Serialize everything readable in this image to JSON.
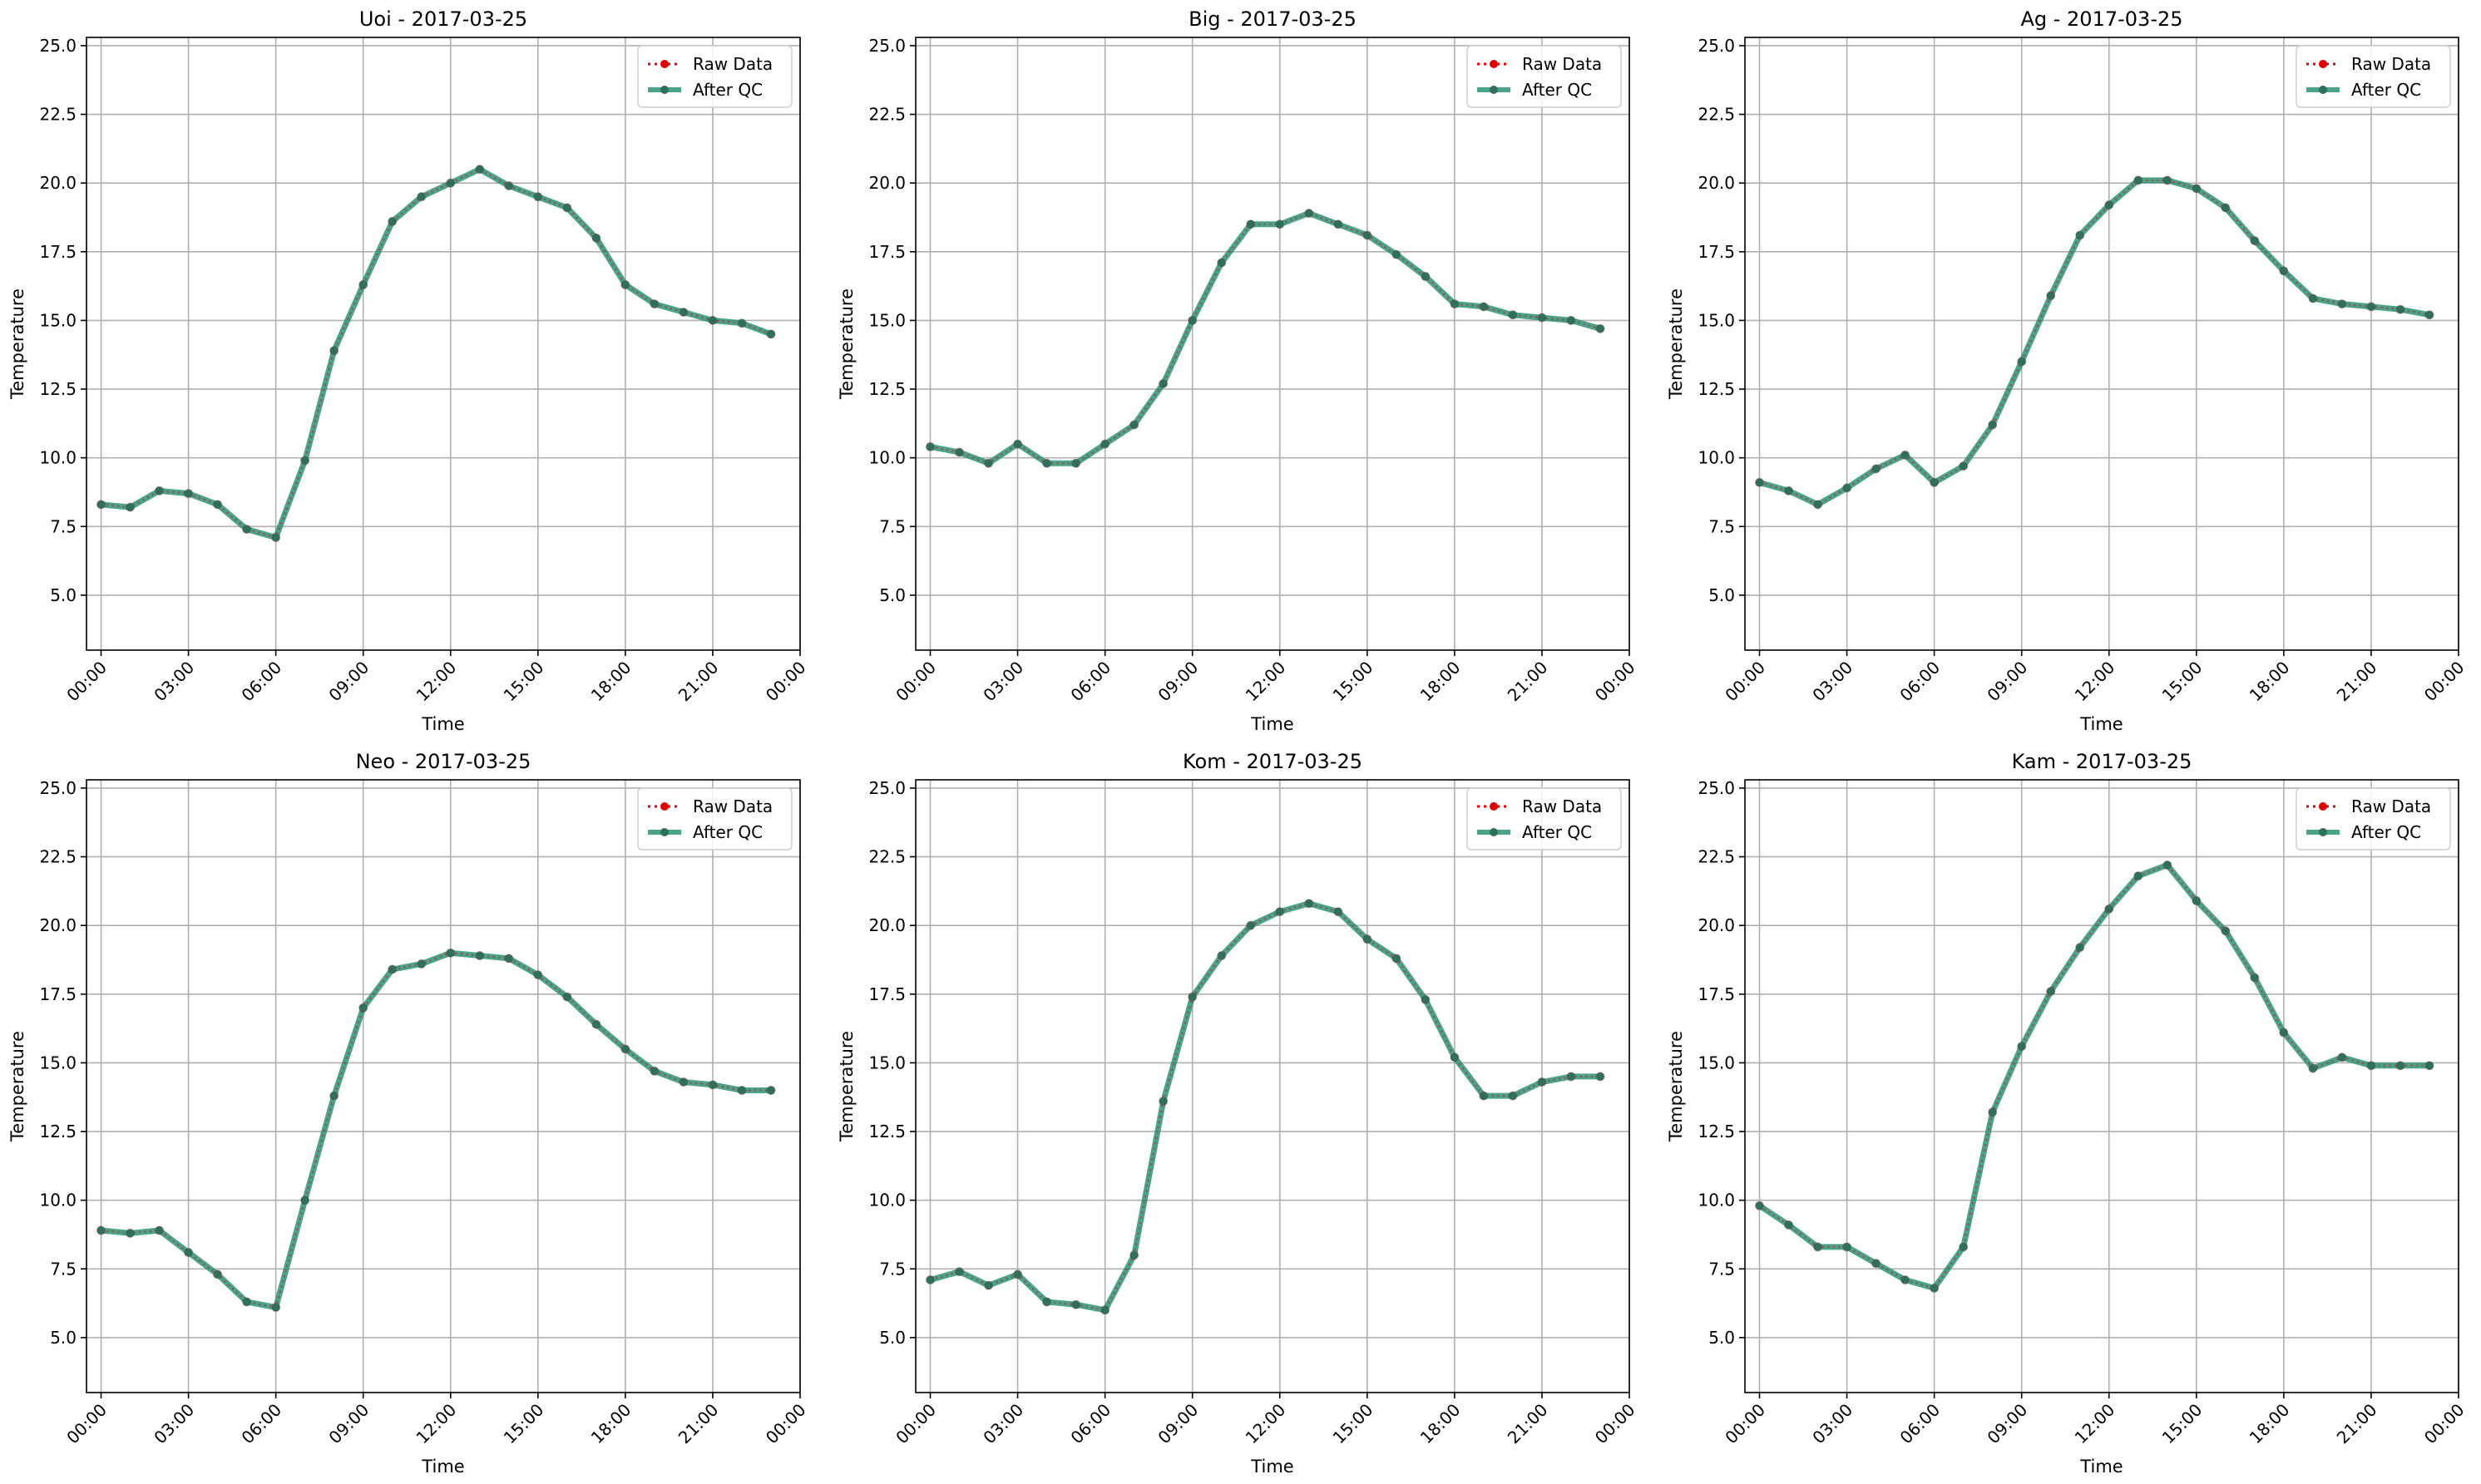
{
  "figure": {
    "background": "#ffffff"
  },
  "style": {
    "raw_color": "#e00000",
    "qc_color": "#2a9476",
    "qc_marker_color": "#2f6f5c",
    "grid_color": "#b0b0b0",
    "axis_color": "#000000"
  },
  "legend": {
    "raw_label": "Raw Data",
    "qc_label": "After QC",
    "location": "upper right"
  },
  "chart_data": [
    {
      "type": "line",
      "title": "Uoi - 2017-03-25",
      "xlabel": "Time",
      "ylabel": "Temperature",
      "x_unit": "hour of day",
      "xlim": [
        -0.5,
        24.0
      ],
      "ylim": [
        3.0,
        25.3
      ],
      "xticks": [
        0,
        3,
        6,
        9,
        12,
        15,
        18,
        21,
        24
      ],
      "xtick_labels": [
        "00:00",
        "03:00",
        "06:00",
        "09:00",
        "12:00",
        "15:00",
        "18:00",
        "21:00",
        "00:00"
      ],
      "yticks": [
        5.0,
        7.5,
        10.0,
        12.5,
        15.0,
        17.5,
        20.0,
        22.5,
        25.0
      ],
      "ytick_labels": [
        "5.0",
        "7.5",
        "10.0",
        "12.5",
        "15.0",
        "17.5",
        "20.0",
        "22.5",
        "25.0"
      ],
      "grid": true,
      "x": [
        0,
        1,
        2,
        3,
        4,
        5,
        6,
        7,
        8,
        9,
        10,
        11,
        12,
        13,
        14,
        15,
        16,
        17,
        18,
        19,
        20,
        21,
        22,
        23
      ],
      "series": [
        {
          "name": "Raw Data",
          "values": [
            8.3,
            8.2,
            8.8,
            8.7,
            8.3,
            7.4,
            7.1,
            9.9,
            13.9,
            16.3,
            18.6,
            19.5,
            20.0,
            20.5,
            19.9,
            19.5,
            19.1,
            18.0,
            16.3,
            15.6,
            15.3,
            15.0,
            14.9,
            14.5
          ]
        },
        {
          "name": "After QC",
          "values": [
            8.3,
            8.2,
            8.8,
            8.7,
            8.3,
            7.4,
            7.1,
            9.9,
            13.9,
            16.3,
            18.6,
            19.5,
            20.0,
            20.5,
            19.9,
            19.5,
            19.1,
            18.0,
            16.3,
            15.6,
            15.3,
            15.0,
            14.9,
            14.5
          ]
        }
      ]
    },
    {
      "type": "line",
      "title": "Big - 2017-03-25",
      "xlabel": "Time",
      "ylabel": "Temperature",
      "x_unit": "hour of day",
      "xlim": [
        -0.5,
        24.0
      ],
      "ylim": [
        3.0,
        25.3
      ],
      "xticks": [
        0,
        3,
        6,
        9,
        12,
        15,
        18,
        21,
        24
      ],
      "xtick_labels": [
        "00:00",
        "03:00",
        "06:00",
        "09:00",
        "12:00",
        "15:00",
        "18:00",
        "21:00",
        "00:00"
      ],
      "yticks": [
        5.0,
        7.5,
        10.0,
        12.5,
        15.0,
        17.5,
        20.0,
        22.5,
        25.0
      ],
      "ytick_labels": [
        "5.0",
        "7.5",
        "10.0",
        "12.5",
        "15.0",
        "17.5",
        "20.0",
        "22.5",
        "25.0"
      ],
      "grid": true,
      "x": [
        0,
        1,
        2,
        3,
        4,
        5,
        6,
        7,
        8,
        9,
        10,
        11,
        12,
        13,
        14,
        15,
        16,
        17,
        18,
        19,
        20,
        21,
        22,
        23
      ],
      "series": [
        {
          "name": "Raw Data",
          "values": [
            10.4,
            10.2,
            9.8,
            10.5,
            9.8,
            9.8,
            10.5,
            11.2,
            12.7,
            15.0,
            17.1,
            18.5,
            18.5,
            18.9,
            18.5,
            18.1,
            17.4,
            16.6,
            15.6,
            15.5,
            15.2,
            15.1,
            15.0,
            14.7
          ]
        },
        {
          "name": "After QC",
          "values": [
            10.4,
            10.2,
            9.8,
            10.5,
            9.8,
            9.8,
            10.5,
            11.2,
            12.7,
            15.0,
            17.1,
            18.5,
            18.5,
            18.9,
            18.5,
            18.1,
            17.4,
            16.6,
            15.6,
            15.5,
            15.2,
            15.1,
            15.0,
            14.7
          ]
        }
      ]
    },
    {
      "type": "line",
      "title": "Ag - 2017-03-25",
      "xlabel": "Time",
      "ylabel": "Temperature",
      "x_unit": "hour of day",
      "xlim": [
        -0.5,
        24.0
      ],
      "ylim": [
        3.0,
        25.3
      ],
      "xticks": [
        0,
        3,
        6,
        9,
        12,
        15,
        18,
        21,
        24
      ],
      "xtick_labels": [
        "00:00",
        "03:00",
        "06:00",
        "09:00",
        "12:00",
        "15:00",
        "18:00",
        "21:00",
        "00:00"
      ],
      "yticks": [
        5.0,
        7.5,
        10.0,
        12.5,
        15.0,
        17.5,
        20.0,
        22.5,
        25.0
      ],
      "ytick_labels": [
        "5.0",
        "7.5",
        "10.0",
        "12.5",
        "15.0",
        "17.5",
        "20.0",
        "22.5",
        "25.0"
      ],
      "grid": true,
      "x": [
        0,
        1,
        2,
        3,
        4,
        5,
        6,
        7,
        8,
        9,
        10,
        11,
        12,
        13,
        14,
        15,
        16,
        17,
        18,
        19,
        20,
        21,
        22,
        23
      ],
      "series": [
        {
          "name": "Raw Data",
          "values": [
            9.1,
            8.8,
            8.3,
            8.9,
            9.6,
            10.1,
            9.1,
            9.7,
            11.2,
            13.5,
            15.9,
            18.1,
            19.2,
            20.1,
            20.1,
            19.8,
            19.1,
            17.9,
            16.8,
            15.8,
            15.6,
            15.5,
            15.4,
            15.2
          ]
        },
        {
          "name": "After QC",
          "values": [
            9.1,
            8.8,
            8.3,
            8.9,
            9.6,
            10.1,
            9.1,
            9.7,
            11.2,
            13.5,
            15.9,
            18.1,
            19.2,
            20.1,
            20.1,
            19.8,
            19.1,
            17.9,
            16.8,
            15.8,
            15.6,
            15.5,
            15.4,
            15.2
          ]
        }
      ]
    },
    {
      "type": "line",
      "title": "Neo - 2017-03-25",
      "xlabel": "Time",
      "ylabel": "Temperature",
      "x_unit": "hour of day",
      "xlim": [
        -0.5,
        24.0
      ],
      "ylim": [
        3.0,
        25.3
      ],
      "xticks": [
        0,
        3,
        6,
        9,
        12,
        15,
        18,
        21,
        24
      ],
      "xtick_labels": [
        "00:00",
        "03:00",
        "06:00",
        "09:00",
        "12:00",
        "15:00",
        "18:00",
        "21:00",
        "00:00"
      ],
      "yticks": [
        5.0,
        7.5,
        10.0,
        12.5,
        15.0,
        17.5,
        20.0,
        22.5,
        25.0
      ],
      "ytick_labels": [
        "5.0",
        "7.5",
        "10.0",
        "12.5",
        "15.0",
        "17.5",
        "20.0",
        "22.5",
        "25.0"
      ],
      "grid": true,
      "x": [
        0,
        1,
        2,
        3,
        4,
        5,
        6,
        7,
        8,
        9,
        10,
        11,
        12,
        13,
        14,
        15,
        16,
        17,
        18,
        19,
        20,
        21,
        22,
        23
      ],
      "series": [
        {
          "name": "Raw Data",
          "values": [
            8.9,
            8.8,
            8.9,
            8.1,
            7.3,
            6.3,
            6.1,
            10.0,
            13.8,
            17.0,
            18.4,
            18.6,
            19.0,
            18.9,
            18.8,
            18.2,
            17.4,
            16.4,
            15.5,
            14.7,
            14.3,
            14.2,
            14.0,
            14.0
          ]
        },
        {
          "name": "After QC",
          "values": [
            8.9,
            8.8,
            8.9,
            8.1,
            7.3,
            6.3,
            6.1,
            10.0,
            13.8,
            17.0,
            18.4,
            18.6,
            19.0,
            18.9,
            18.8,
            18.2,
            17.4,
            16.4,
            15.5,
            14.7,
            14.3,
            14.2,
            14.0,
            14.0
          ]
        }
      ]
    },
    {
      "type": "line",
      "title": "Kom - 2017-03-25",
      "xlabel": "Time",
      "ylabel": "Temperature",
      "x_unit": "hour of day",
      "xlim": [
        -0.5,
        24.0
      ],
      "ylim": [
        3.0,
        25.3
      ],
      "xticks": [
        0,
        3,
        6,
        9,
        12,
        15,
        18,
        21,
        24
      ],
      "xtick_labels": [
        "00:00",
        "03:00",
        "06:00",
        "09:00",
        "12:00",
        "15:00",
        "18:00",
        "21:00",
        "00:00"
      ],
      "yticks": [
        5.0,
        7.5,
        10.0,
        12.5,
        15.0,
        17.5,
        20.0,
        22.5,
        25.0
      ],
      "ytick_labels": [
        "5.0",
        "7.5",
        "10.0",
        "12.5",
        "15.0",
        "17.5",
        "20.0",
        "22.5",
        "25.0"
      ],
      "grid": true,
      "x": [
        0,
        1,
        2,
        3,
        4,
        5,
        6,
        7,
        8,
        9,
        10,
        11,
        12,
        13,
        14,
        15,
        16,
        17,
        18,
        19,
        20,
        21,
        22,
        23
      ],
      "series": [
        {
          "name": "Raw Data",
          "values": [
            7.1,
            7.4,
            6.9,
            7.3,
            6.3,
            6.2,
            6.0,
            8.0,
            13.6,
            17.4,
            18.9,
            20.0,
            20.5,
            20.8,
            20.5,
            19.5,
            18.8,
            17.3,
            15.2,
            13.8,
            13.8,
            14.3,
            14.5,
            14.5
          ]
        },
        {
          "name": "After QC",
          "values": [
            7.1,
            7.4,
            6.9,
            7.3,
            6.3,
            6.2,
            6.0,
            8.0,
            13.6,
            17.4,
            18.9,
            20.0,
            20.5,
            20.8,
            20.5,
            19.5,
            18.8,
            17.3,
            15.2,
            13.8,
            13.8,
            14.3,
            14.5,
            14.5
          ]
        }
      ]
    },
    {
      "type": "line",
      "title": "Kam - 2017-03-25",
      "xlabel": "Time",
      "ylabel": "Temperature",
      "x_unit": "hour of day",
      "xlim": [
        -0.5,
        24.0
      ],
      "ylim": [
        3.0,
        25.3
      ],
      "xticks": [
        0,
        3,
        6,
        9,
        12,
        15,
        18,
        21,
        24
      ],
      "xtick_labels": [
        "00:00",
        "03:00",
        "06:00",
        "09:00",
        "12:00",
        "15:00",
        "18:00",
        "21:00",
        "00:00"
      ],
      "yticks": [
        5.0,
        7.5,
        10.0,
        12.5,
        15.0,
        17.5,
        20.0,
        22.5,
        25.0
      ],
      "ytick_labels": [
        "5.0",
        "7.5",
        "10.0",
        "12.5",
        "15.0",
        "17.5",
        "20.0",
        "22.5",
        "25.0"
      ],
      "grid": true,
      "x": [
        0,
        1,
        2,
        3,
        4,
        5,
        6,
        7,
        8,
        9,
        10,
        11,
        12,
        13,
        14,
        15,
        16,
        17,
        18,
        19,
        20,
        21,
        22,
        23
      ],
      "series": [
        {
          "name": "Raw Data",
          "values": [
            9.8,
            9.1,
            8.3,
            8.3,
            7.7,
            7.1,
            6.8,
            8.3,
            13.2,
            15.6,
            17.6,
            19.2,
            20.6,
            21.8,
            22.2,
            20.9,
            19.8,
            18.1,
            16.1,
            14.8,
            15.2,
            14.9,
            14.9,
            14.9
          ]
        },
        {
          "name": "After QC",
          "values": [
            9.8,
            9.1,
            8.3,
            8.3,
            7.7,
            7.1,
            6.8,
            8.3,
            13.2,
            15.6,
            17.6,
            19.2,
            20.6,
            21.8,
            22.2,
            20.9,
            19.8,
            18.1,
            16.1,
            14.8,
            15.2,
            14.9,
            14.9,
            14.9
          ]
        }
      ]
    }
  ]
}
